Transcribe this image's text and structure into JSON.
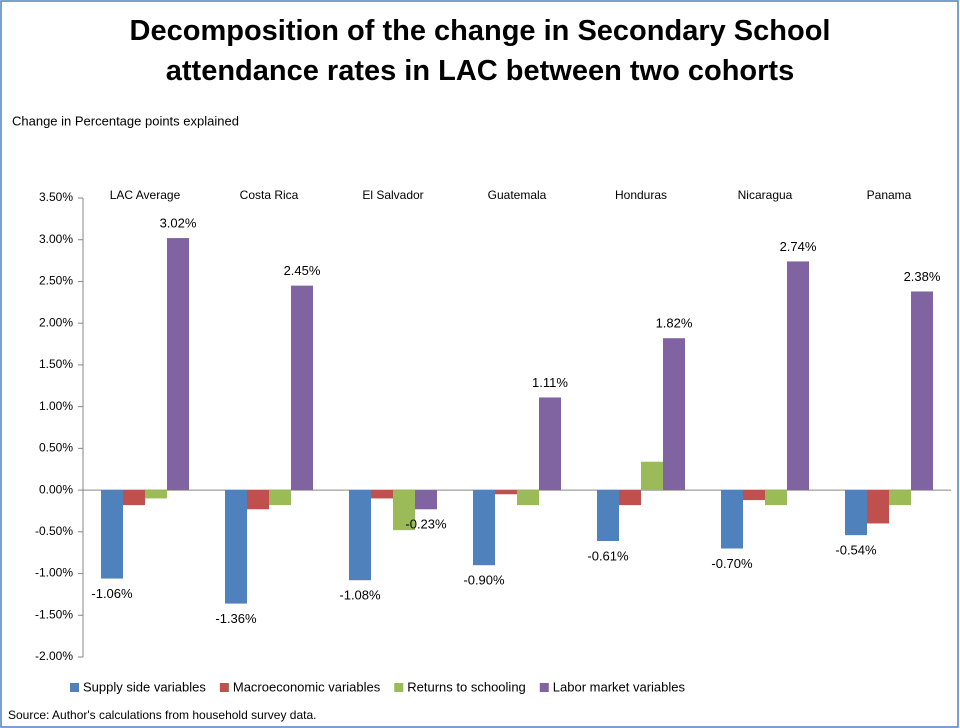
{
  "chart_data": {
    "type": "bar",
    "title": "Decomposition of the change in Secondary School attendance rates in LAC between two cohorts",
    "subtitle": "Change in Percentage points explained",
    "source": "Source: Author's calculations from household survey data.",
    "categories": [
      "LAC Average",
      "Costa Rica",
      "El Salvador",
      "Guatemala",
      "Honduras",
      "Nicaragua",
      "Panama"
    ],
    "series": [
      {
        "name": "Supply side variables",
        "color": "#4f81bd",
        "values": [
          -1.06,
          -1.36,
          -1.08,
          -0.9,
          -0.61,
          -0.7,
          -0.54
        ],
        "value_labels": [
          "-1.06%",
          "-1.36%",
          "-1.08%",
          "-0.90%",
          "-0.61%",
          "-0.70%",
          "-0.54%"
        ]
      },
      {
        "name": "Macroeconomic variables",
        "color": "#c0504d",
        "values": [
          -0.18,
          -0.23,
          -0.1,
          -0.05,
          -0.18,
          -0.12,
          -0.4
        ]
      },
      {
        "name": "Returns to schooling",
        "color": "#9bbb59",
        "values": [
          -0.1,
          -0.18,
          -0.48,
          -0.18,
          0.34,
          -0.18,
          -0.18
        ]
      },
      {
        "name": "Labor market variables",
        "color": "#8064a2",
        "values": [
          3.02,
          2.45,
          -0.23,
          1.11,
          1.82,
          2.74,
          2.38
        ],
        "value_labels": [
          "3.02%",
          "2.45%",
          "-0.23%",
          "1.11%",
          "1.82%",
          "2.74%",
          "2.38%"
        ]
      }
    ],
    "ylim": [
      -2.0,
      3.5
    ],
    "yticks": [
      {
        "value": -2.0,
        "label": "-2.00%"
      },
      {
        "value": -1.5,
        "label": "-1.50%"
      },
      {
        "value": -1.0,
        "label": "-1.00%"
      },
      {
        "value": -0.5,
        "label": "-0.50%"
      },
      {
        "value": 0.0,
        "label": "0.00%"
      },
      {
        "value": 0.5,
        "label": "0.50%"
      },
      {
        "value": 1.0,
        "label": "1.00%"
      },
      {
        "value": 1.5,
        "label": "1.50%"
      },
      {
        "value": 2.0,
        "label": "2.00%"
      },
      {
        "value": 2.5,
        "label": "2.50%"
      },
      {
        "value": 3.0,
        "label": "3.00%"
      },
      {
        "value": 3.5,
        "label": "3.50%"
      }
    ],
    "grid": false
  }
}
